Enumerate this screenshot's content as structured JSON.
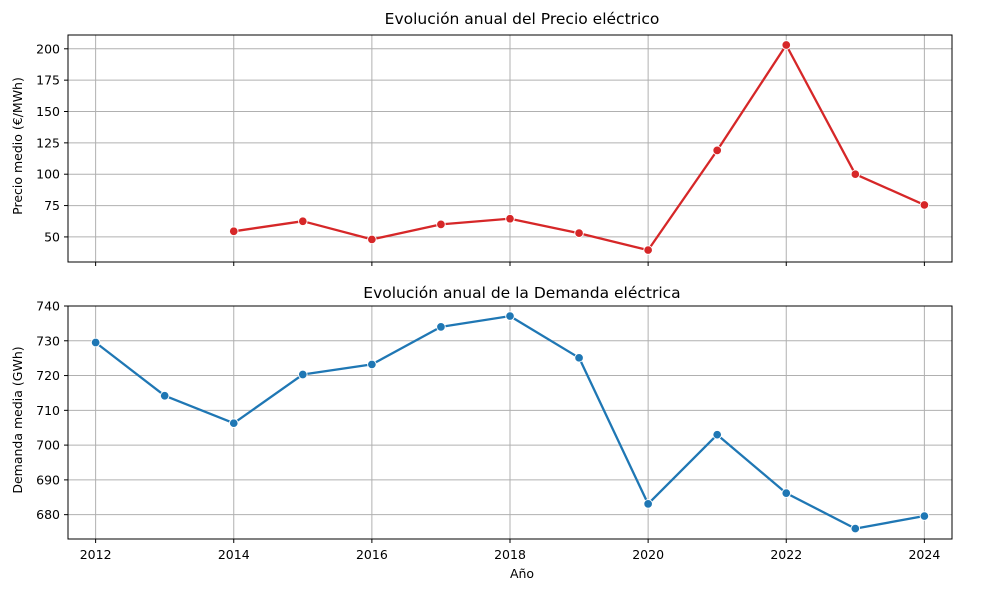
{
  "chart_data": [
    {
      "type": "line",
      "title": "Evolución anual del Precio eléctrico",
      "xlabel": "",
      "ylabel": "Precio medio (€/MWh)",
      "x": [
        2014,
        2015,
        2016,
        2017,
        2018,
        2019,
        2020,
        2021,
        2022,
        2023,
        2024
      ],
      "series": [
        {
          "values": [
            54.5,
            62.5,
            48,
            60,
            64.5,
            53,
            39.5,
            119,
            203,
            100,
            75.5
          ],
          "color": "#d62728"
        }
      ],
      "xlim": [
        2011.6,
        2024.4
      ],
      "ylim": [
        30,
        211
      ],
      "yticks": [
        50,
        75,
        100,
        125,
        150,
        175,
        200
      ],
      "xticks": [
        2012,
        2014,
        2016,
        2018,
        2020,
        2022,
        2024
      ],
      "xtick_labels_shown": false,
      "grid": true,
      "marker": "circle"
    },
    {
      "type": "line",
      "title": "Evolución anual de la Demanda eléctrica",
      "xlabel": "Año",
      "ylabel": "Demanda media (GWh)",
      "x": [
        2012,
        2013,
        2014,
        2015,
        2016,
        2017,
        2018,
        2019,
        2020,
        2021,
        2022,
        2023,
        2024
      ],
      "series": [
        {
          "values": [
            729.5,
            714.2,
            706.3,
            720.3,
            723.2,
            734,
            737.1,
            725.1,
            683.1,
            703,
            686.2,
            676,
            679.6
          ],
          "color": "#1f77b4"
        }
      ],
      "xlim": [
        2011.6,
        2024.4
      ],
      "ylim": [
        673,
        740
      ],
      "yticks": [
        680,
        690,
        700,
        710,
        720,
        730,
        740
      ],
      "xticks": [
        2012,
        2014,
        2016,
        2018,
        2020,
        2022,
        2024
      ],
      "xtick_labels_shown": true,
      "grid": true,
      "marker": "circle"
    }
  ]
}
